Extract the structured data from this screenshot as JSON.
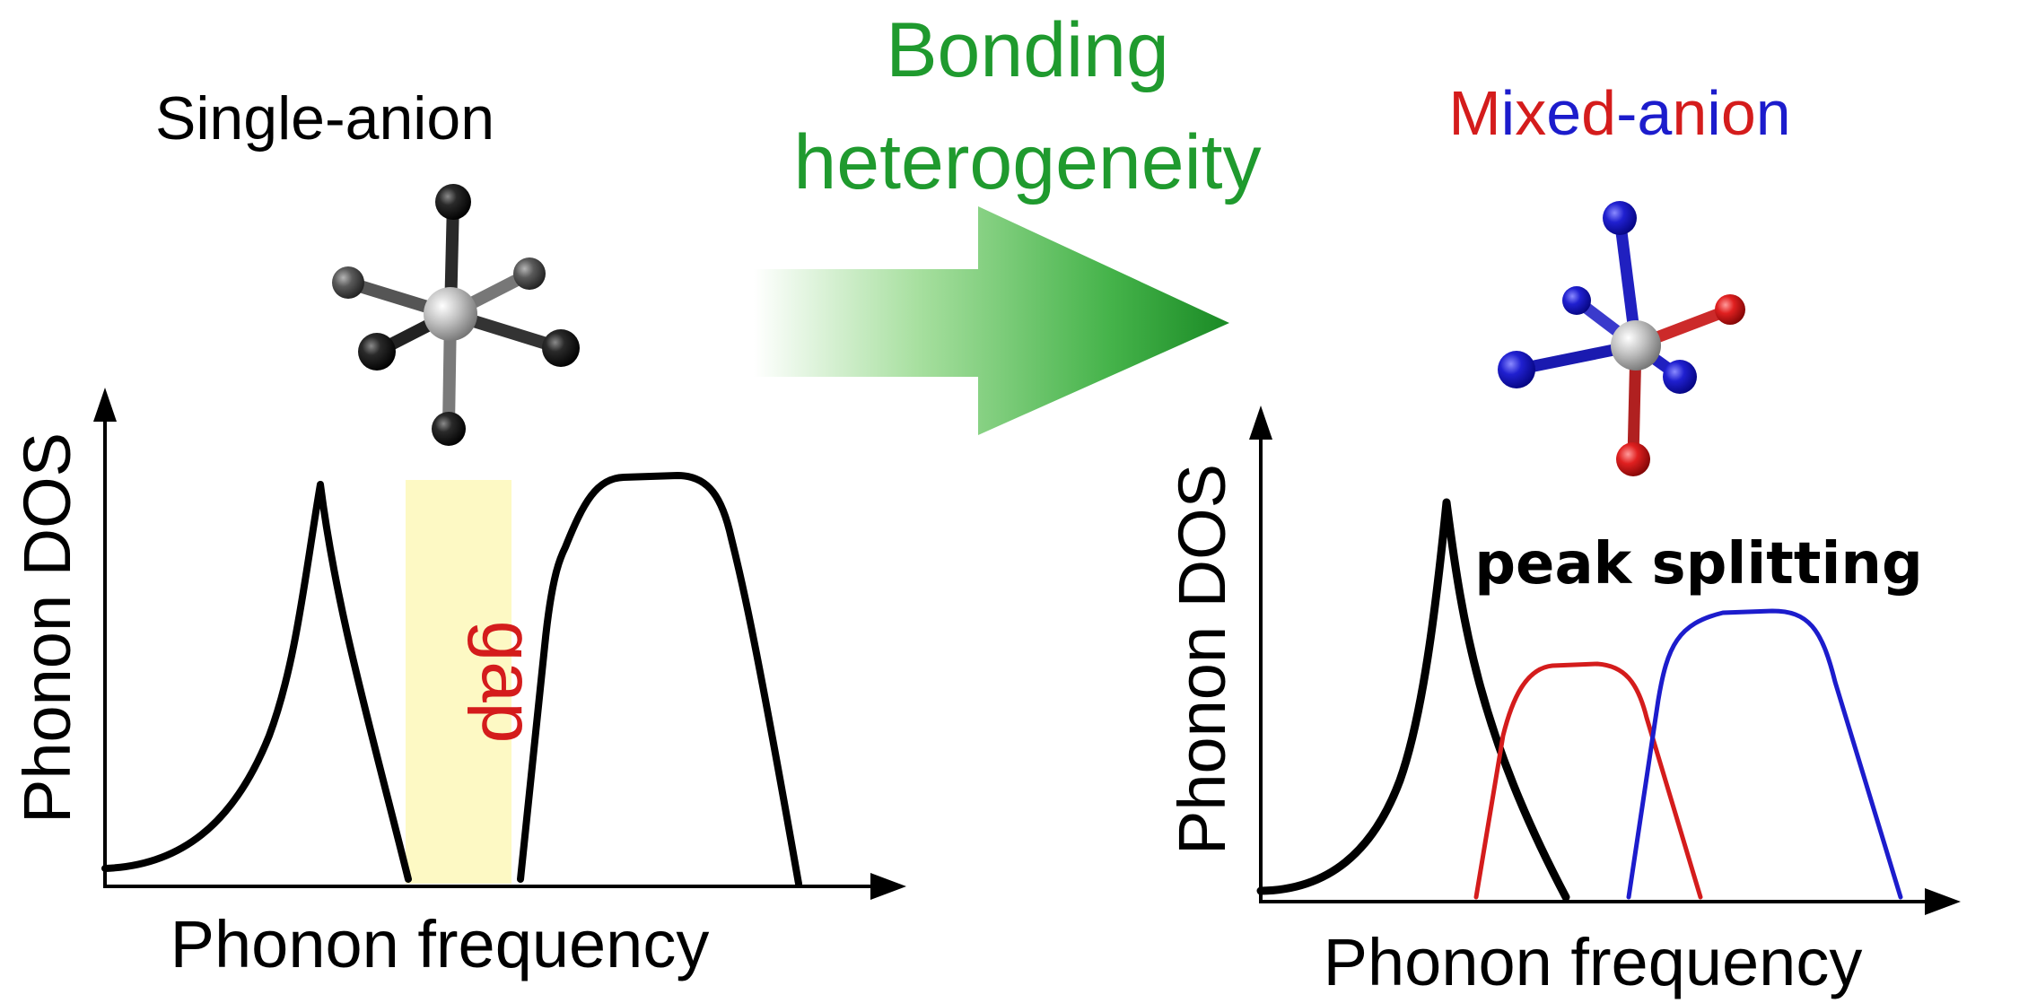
{
  "left_panel": {
    "title": "Single-anion",
    "gap_label": "gap",
    "ylabel": "Phonon DOS",
    "xlabel": "Phonon frequency"
  },
  "transition": {
    "label_line1": "Bonding",
    "label_line2": "heterogeneity"
  },
  "right_panel": {
    "title_parts": [
      {
        "text": "M",
        "color": "#d41c1c"
      },
      {
        "text": "i",
        "color": "#1c1ccc"
      },
      {
        "text": "x",
        "color": "#d41c1c"
      },
      {
        "text": "e",
        "color": "#1c1ccc"
      },
      {
        "text": "d",
        "color": "#d41c1c"
      },
      {
        "text": "-",
        "color": "#1c1ccc"
      },
      {
        "text": "a",
        "color": "#1c1ccc"
      },
      {
        "text": "n",
        "color": "#d41c1c"
      },
      {
        "text": "i",
        "color": "#1c1ccc"
      },
      {
        "text": "o",
        "color": "#d41c1c"
      },
      {
        "text": "n",
        "color": "#1c1ccc"
      }
    ],
    "annotation": "peak splitting",
    "ylabel": "Phonon DOS",
    "xlabel": "Phonon frequency"
  },
  "colors": {
    "arrow_green": "#1f9a2e",
    "text_green": "#1f9a2e",
    "gap_red": "#d41c1c",
    "gap_fill": "#fdf9c4",
    "curve_black": "#000000",
    "curve_red": "#d41c1c",
    "curve_blue": "#1c1ccc"
  },
  "icons": [
    "single-anion-octahedron-icon",
    "mixed-anion-octahedron-icon",
    "transition-arrow-icon"
  ]
}
